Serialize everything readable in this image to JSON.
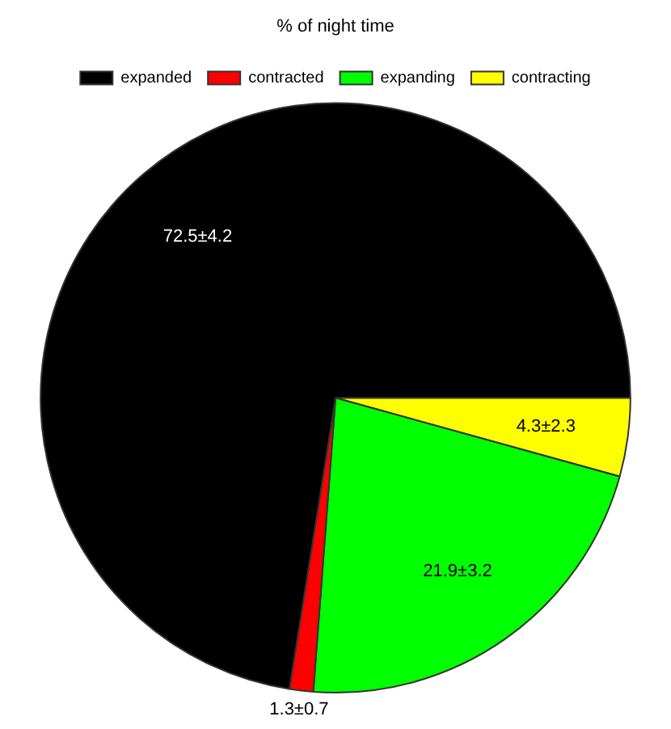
{
  "chart_data": {
    "type": "pie",
    "title": "% of night time",
    "categories": [
      "expanded",
      "contracted",
      "expanding",
      "contracting"
    ],
    "values": [
      72.5,
      1.3,
      21.9,
      4.3
    ],
    "colors": [
      "#000000",
      "#ff0000",
      "#00ff00",
      "#ffff00"
    ],
    "value_labels": [
      "72.5±4.2",
      "1.3±0.7",
      "21.9±3.2",
      "4.3±2.3"
    ],
    "legend": "top"
  }
}
